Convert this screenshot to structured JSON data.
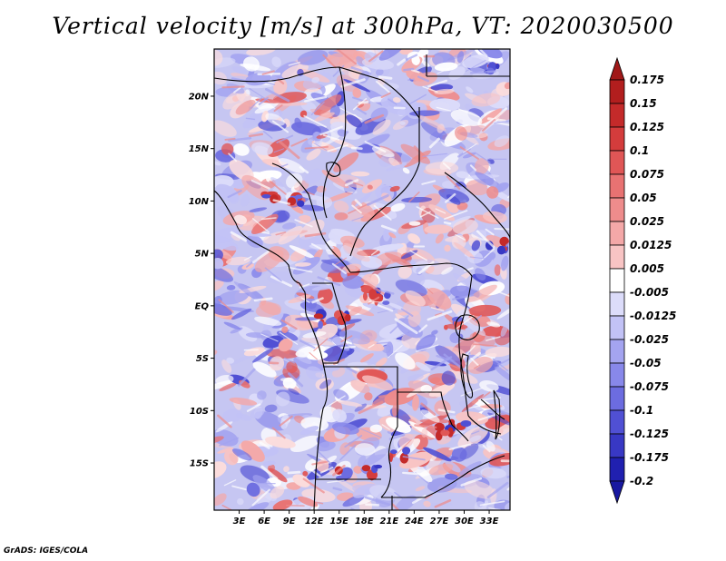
{
  "title": "Vertical velocity [m/s] at 300hPa, VT: 2020030500",
  "credit": "GrADS: IGES/COLA",
  "map": {
    "region": "Central Africa",
    "lat_range": [
      -19.5,
      24.5
    ],
    "lon_range": [
      0,
      35.5
    ],
    "lat_ticks": [
      {
        "value": 20,
        "label": "20N"
      },
      {
        "value": 15,
        "label": "15N"
      },
      {
        "value": 10,
        "label": "10N"
      },
      {
        "value": 5,
        "label": "5N"
      },
      {
        "value": 0,
        "label": "EQ"
      },
      {
        "value": -5,
        "label": "5S"
      },
      {
        "value": -10,
        "label": "10S"
      },
      {
        "value": -15,
        "label": "15S"
      }
    ],
    "lon_ticks": [
      {
        "value": 3,
        "label": "3E"
      },
      {
        "value": 6,
        "label": "6E"
      },
      {
        "value": 9,
        "label": "9E"
      },
      {
        "value": 12,
        "label": "12E"
      },
      {
        "value": 15,
        "label": "15E"
      },
      {
        "value": 18,
        "label": "18E"
      },
      {
        "value": 21,
        "label": "21E"
      },
      {
        "value": 24,
        "label": "24E"
      },
      {
        "value": 27,
        "label": "27E"
      },
      {
        "value": 30,
        "label": "30E"
      },
      {
        "value": 33,
        "label": "33E"
      }
    ]
  },
  "colorbar": {
    "levels": [
      {
        "label": "0.175",
        "color": "#b21e1e"
      },
      {
        "label": "0.15",
        "color": "#c42a2a"
      },
      {
        "label": "0.125",
        "color": "#d43c3c"
      },
      {
        "label": "0.1",
        "color": "#e05656"
      },
      {
        "label": "0.075",
        "color": "#e87272"
      },
      {
        "label": "0.05",
        "color": "#ee8c8c"
      },
      {
        "label": "0.025",
        "color": "#f4a8a8"
      },
      {
        "label": "0.0125",
        "color": "#f8c4c4"
      },
      {
        "label": "0.005",
        "color": "#fbdcdc"
      },
      {
        "label": "-0.005",
        "color": "#ffffff"
      },
      {
        "label": "-0.0125",
        "color": "#dcdcfa"
      },
      {
        "label": "-0.025",
        "color": "#c2c2f6"
      },
      {
        "label": "-0.05",
        "color": "#a4a4f0"
      },
      {
        "label": "-0.075",
        "color": "#8888ea"
      },
      {
        "label": "-0.1",
        "color": "#6c6ce0"
      },
      {
        "label": "-0.125",
        "color": "#5050d4"
      },
      {
        "label": "-0.175",
        "color": "#3838c4"
      },
      {
        "label": "-0.2",
        "color": "#2020b0"
      }
    ],
    "top_arrow_color": "#a01818",
    "bottom_arrow_color": "#1818a0",
    "middle_color": "#ffffff"
  }
}
